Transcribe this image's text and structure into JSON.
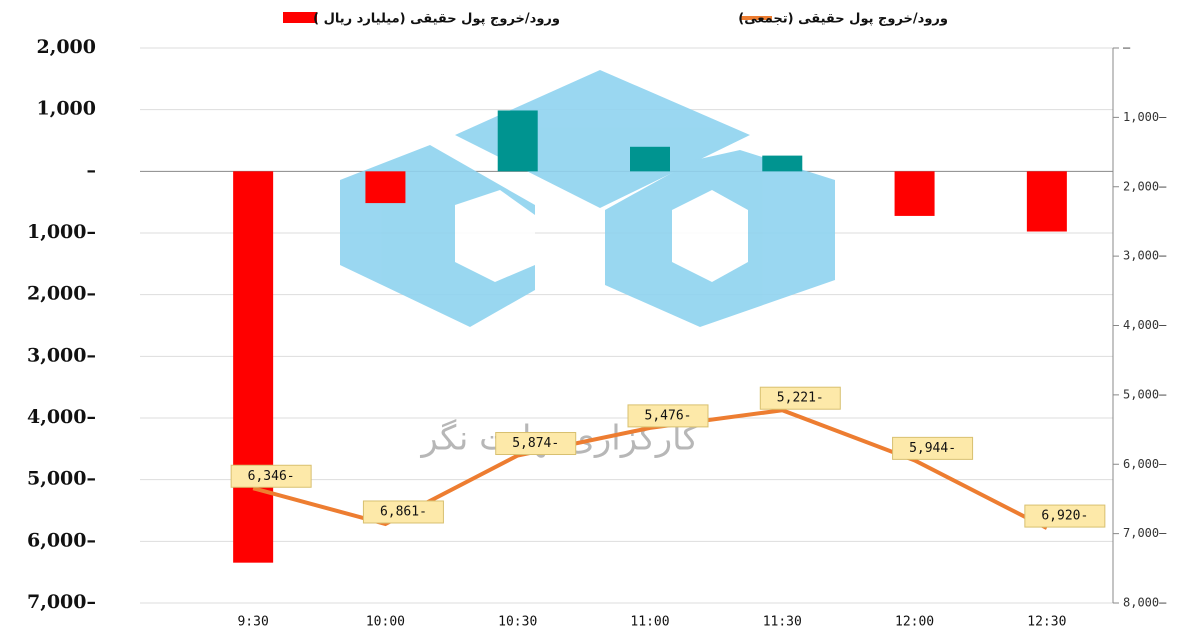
{
  "chart_data": {
    "type": "combo",
    "legend": [
      {
        "name": "ورود/خروج پول حقیقی (میلیارد ریال )"
      },
      {
        "name": "ورود/خروج پول حقیقی (تجمعی)"
      }
    ],
    "watermark": "کارگزاری نهایت نگر",
    "categories": [
      "9:30",
      "10:00",
      "10:30",
      "11:00",
      "11:30",
      "12:00",
      "12:30"
    ],
    "series": [
      {
        "name": "ورود/خروج پول حقیقی (میلیارد ریال )",
        "type": "bar",
        "color": "#ff0000",
        "positive_color": "#009490",
        "values": [
          -6346,
          -515,
          987,
          398,
          255,
          -723,
          -976
        ]
      },
      {
        "name": "ورود/خروج پول حقیقی (تجمعی)",
        "type": "line",
        "axis": "y2",
        "color": "#ed7d31",
        "values": [
          -6346,
          -6861,
          -5874,
          -5476,
          -5221,
          -5944,
          -6920
        ],
        "value_labels": [
          "6,346-",
          "6,861-",
          "5,874-",
          "5,476-",
          "5,221-",
          "5,944-",
          "6,920-"
        ]
      }
    ],
    "ylim": [
      -7000,
      2000
    ],
    "yticks": [
      {
        "value": 2000,
        "label": "2,000"
      },
      {
        "value": 1000,
        "label": "1,000"
      },
      {
        "value": 0,
        "label": "–"
      },
      {
        "value": -1000,
        "label": "1,000–"
      },
      {
        "value": -2000,
        "label": "2,000–"
      },
      {
        "value": -3000,
        "label": "3,000–"
      },
      {
        "value": -4000,
        "label": "4,000–"
      },
      {
        "value": -5000,
        "label": "5,000–"
      },
      {
        "value": -6000,
        "label": "6,000–"
      },
      {
        "value": -7000,
        "label": "7,000–"
      }
    ],
    "y2lim": [
      -8000,
      0
    ],
    "y2ticks": [
      {
        "value": 0,
        "label": "–"
      },
      {
        "value": -1000,
        "label": "1,000–"
      },
      {
        "value": -2000,
        "label": "2,000–"
      },
      {
        "value": -3000,
        "label": "3,000–"
      },
      {
        "value": -4000,
        "label": "4,000–"
      },
      {
        "value": -5000,
        "label": "5,000–"
      },
      {
        "value": -6000,
        "label": "6,000–"
      },
      {
        "value": -7000,
        "label": "7,000–"
      },
      {
        "value": -8000,
        "label": "8,000–"
      }
    ],
    "grid": true
  }
}
